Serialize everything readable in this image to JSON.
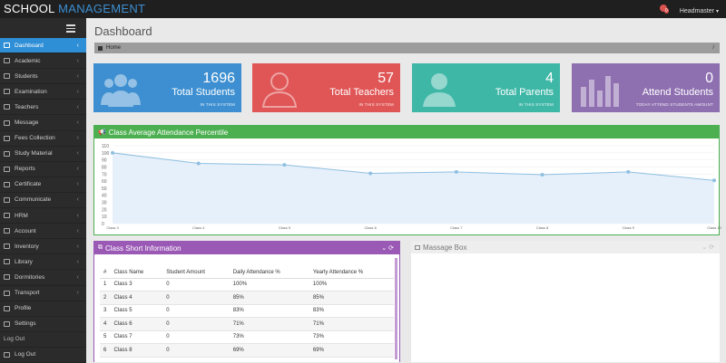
{
  "brand": {
    "part1": "SCHOOL",
    "part2": " MANAGEMENT"
  },
  "topbar": {
    "notification_count": "0",
    "username": "Headmaster"
  },
  "sidebar": {
    "items": [
      {
        "label": "Dashboard",
        "icon": "dashboard-icon",
        "active": true
      },
      {
        "label": "Academic",
        "icon": "academic-icon"
      },
      {
        "label": "Students",
        "icon": "students-icon"
      },
      {
        "label": "Examination",
        "icon": "examination-icon"
      },
      {
        "label": "Teachers",
        "icon": "teachers-icon"
      },
      {
        "label": "Message",
        "icon": "message-icon"
      },
      {
        "label": "Fees Collection",
        "icon": "fees-icon"
      },
      {
        "label": "Study Material",
        "icon": "study-material-icon"
      },
      {
        "label": "Reports",
        "icon": "reports-icon"
      },
      {
        "label": "Certificate",
        "icon": "certificate-icon"
      },
      {
        "label": "Communicate",
        "icon": "communicate-icon"
      },
      {
        "label": "HRM",
        "icon": "hrm-icon"
      },
      {
        "label": "Account",
        "icon": "account-icon"
      },
      {
        "label": "Inventory",
        "icon": "inventory-icon"
      },
      {
        "label": "Library",
        "icon": "library-icon"
      },
      {
        "label": "Dormitories",
        "icon": "dormitories-icon"
      },
      {
        "label": "Transport",
        "icon": "transport-icon"
      },
      {
        "label": "Profile",
        "icon": "profile-icon"
      },
      {
        "label": "Settings",
        "icon": "settings-icon"
      },
      {
        "label": "Log Out",
        "icon": ""
      },
      {
        "label": "Log Out",
        "icon": "logout-icon"
      }
    ]
  },
  "page": {
    "title": "Dashboard",
    "breadcrumb": "Home"
  },
  "cards": [
    {
      "value": "1696",
      "label": "Total Students",
      "sub": "IN THIS SYSTEM",
      "color": "#3d8fd1"
    },
    {
      "value": "57",
      "label": "Total Teachers",
      "sub": "IN THIS SYSTEM",
      "color": "#e05555"
    },
    {
      "value": "4",
      "label": "Total Parents",
      "sub": "IN THIS SYSTEM",
      "color": "#3fb7a7"
    },
    {
      "value": "0",
      "label": "Attend Students",
      "sub": "TODAY ATTEND STUDENTS AMOUNT",
      "color": "#8e6fb0"
    }
  ],
  "chart_panel": {
    "title": "Class Average Attendance Percentile"
  },
  "chart_data": {
    "type": "area",
    "categories": [
      "Class 3",
      "Class 4",
      "Class 5",
      "Class 6",
      "Class 7",
      "Class 8",
      "Class 9",
      "Class 10"
    ],
    "values": [
      100,
      85,
      83,
      71,
      73,
      69,
      73,
      61
    ],
    "yticks": [
      0,
      10,
      20,
      30,
      40,
      50,
      60,
      70,
      80,
      90,
      100,
      110
    ],
    "ylim": [
      0,
      110
    ],
    "line_color": "#8fbfe0",
    "fill_color": "#e6f0fa"
  },
  "class_panel": {
    "title": "Class Short Information",
    "columns": [
      "#",
      "Class Name",
      "Student Amount",
      "Daily Attendance %",
      "Yearly Attendance %"
    ],
    "rows": [
      [
        "1",
        "Class 3",
        "0",
        "100%",
        "100%"
      ],
      [
        "2",
        "Class 4",
        "0",
        "85%",
        "85%"
      ],
      [
        "3",
        "Class 5",
        "0",
        "83%",
        "83%"
      ],
      [
        "4",
        "Class 6",
        "0",
        "71%",
        "71%"
      ],
      [
        "5",
        "Class 7",
        "0",
        "73%",
        "73%"
      ],
      [
        "6",
        "Class 8",
        "0",
        "69%",
        "69%"
      ]
    ]
  },
  "message_panel": {
    "title": "Massage Box"
  }
}
